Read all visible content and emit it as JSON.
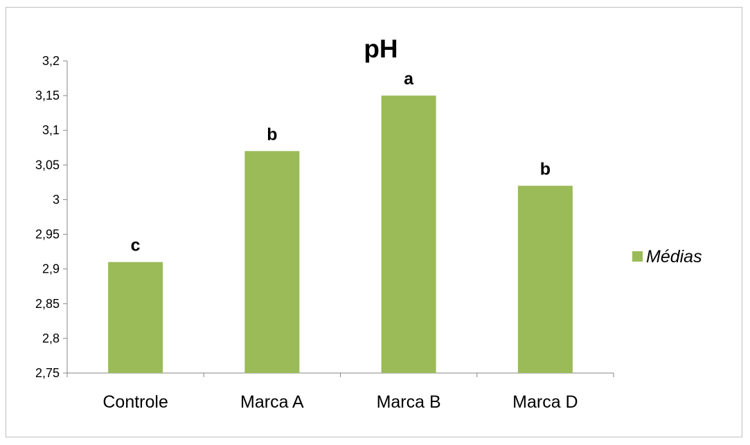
{
  "chart_data": {
    "type": "bar",
    "title": "pH",
    "categories": [
      "Controle",
      "Marca A",
      "Marca B",
      "Marca D"
    ],
    "series": [
      {
        "name": "Médias",
        "values": [
          2.91,
          3.07,
          3.15,
          3.02
        ],
        "color": "#9BBB59"
      }
    ],
    "data_labels": [
      "c",
      "b",
      "a",
      "b"
    ],
    "ylim": [
      2.75,
      3.2
    ],
    "yticks": [
      2.75,
      2.8,
      2.85,
      2.9,
      2.95,
      3.0,
      3.05,
      3.1,
      3.15,
      3.2
    ],
    "ytick_labels": [
      "2,75",
      "2,8",
      "2,85",
      "2,9",
      "2,95",
      "3",
      "3,05",
      "3,1",
      "3,15",
      "3,2"
    ],
    "xlabel": "",
    "ylabel": "",
    "grid": false,
    "legend_position": "right"
  }
}
